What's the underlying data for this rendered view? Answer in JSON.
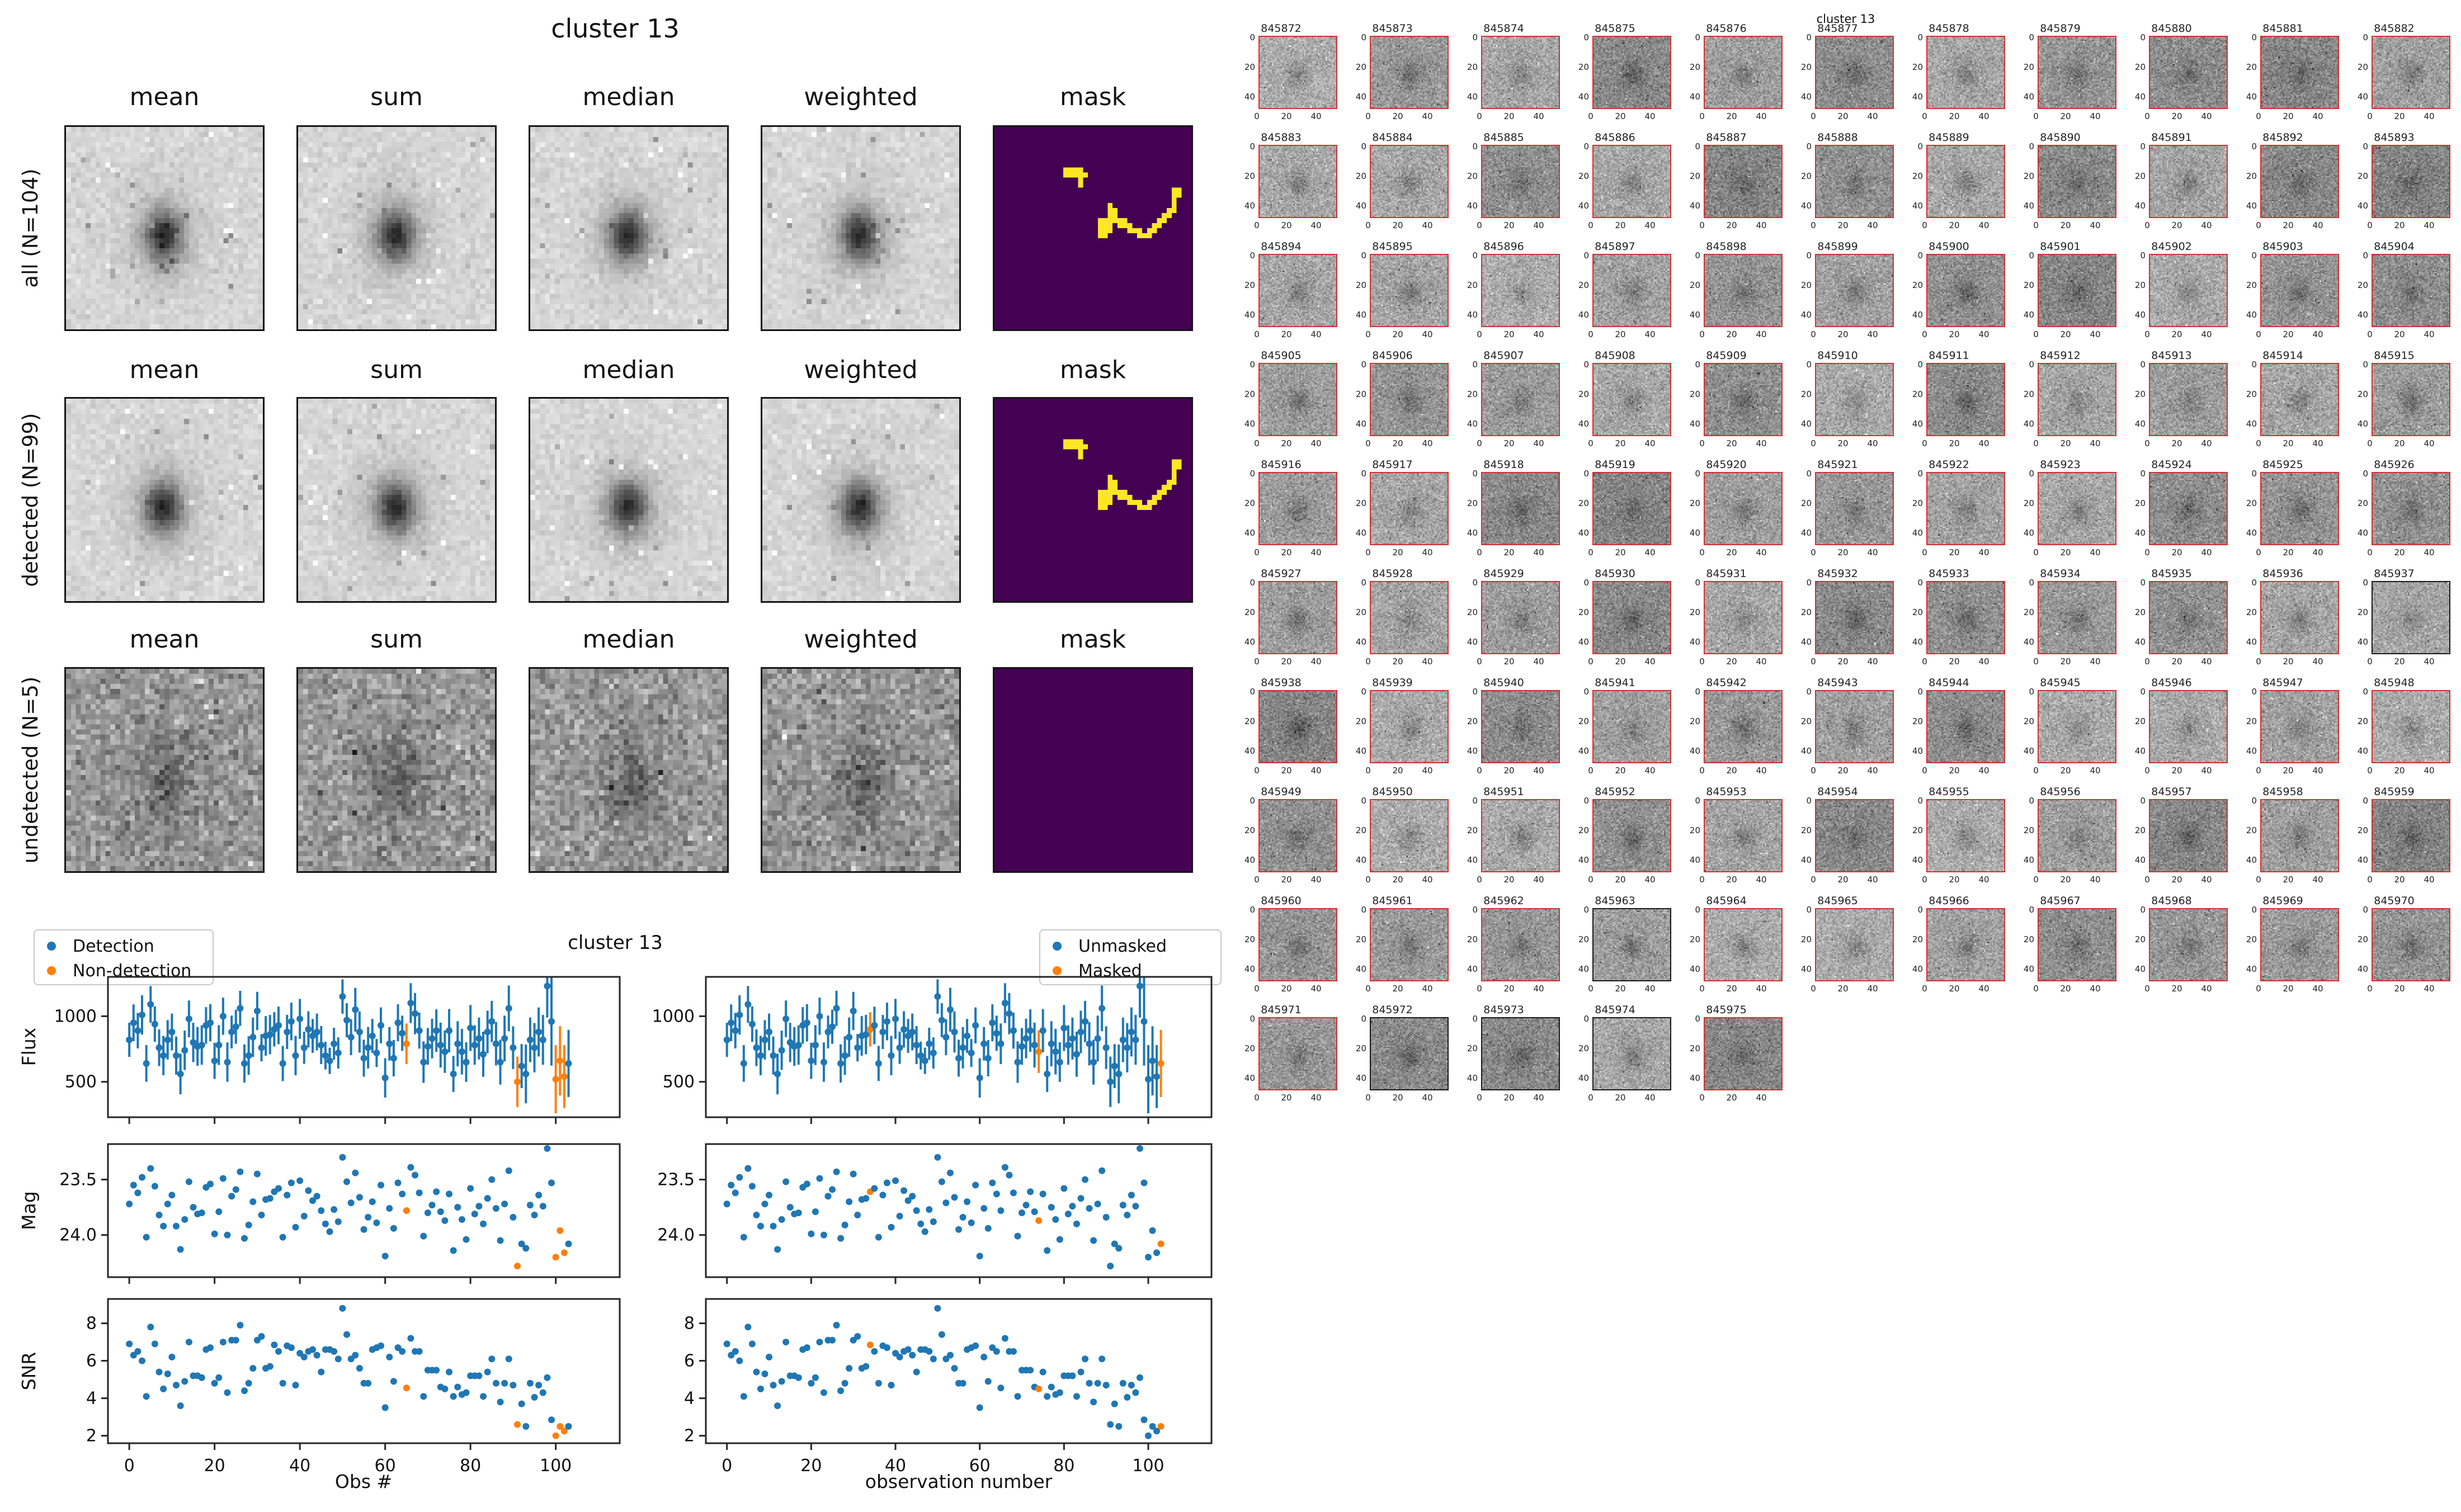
{
  "stack_figure": {
    "title": "cluster 13",
    "column_headers": [
      "mean",
      "sum",
      "median",
      "weighted",
      "mask"
    ],
    "rows": [
      {
        "label": "all (N=104)"
      },
      {
        "label": "detected (N=99)"
      },
      {
        "label": "undetected (N=5)"
      }
    ],
    "mask_colors": {
      "background": "#440154",
      "foreground": "#fde725"
    },
    "mask_rows_with_pattern": [
      0,
      1
    ],
    "mask_cells": [
      [
        14,
        8
      ],
      [
        15,
        8
      ],
      [
        16,
        8
      ],
      [
        17,
        8
      ],
      [
        14,
        9
      ],
      [
        15,
        9
      ],
      [
        16,
        9
      ],
      [
        17,
        9
      ],
      [
        18,
        9
      ],
      [
        17,
        10
      ],
      [
        17,
        11
      ],
      [
        36,
        12
      ],
      [
        37,
        12
      ],
      [
        36,
        13
      ],
      [
        37,
        13
      ],
      [
        36,
        14
      ],
      [
        36,
        15
      ],
      [
        36,
        16
      ],
      [
        23,
        15
      ],
      [
        23,
        16
      ],
      [
        24,
        16
      ],
      [
        23,
        17
      ],
      [
        24,
        17
      ],
      [
        21,
        18
      ],
      [
        22,
        18
      ],
      [
        23,
        18
      ],
      [
        24,
        18
      ],
      [
        25,
        18
      ],
      [
        26,
        18
      ],
      [
        21,
        19
      ],
      [
        22,
        19
      ],
      [
        23,
        19
      ],
      [
        25,
        19
      ],
      [
        26,
        19
      ],
      [
        27,
        19
      ],
      [
        21,
        20
      ],
      [
        22,
        20
      ],
      [
        23,
        20
      ],
      [
        27,
        20
      ],
      [
        28,
        20
      ],
      [
        29,
        20
      ],
      [
        21,
        21
      ],
      [
        22,
        21
      ],
      [
        29,
        21
      ],
      [
        30,
        21
      ],
      [
        31,
        21
      ],
      [
        31,
        20
      ],
      [
        32,
        20
      ],
      [
        32,
        19
      ],
      [
        33,
        19
      ],
      [
        33,
        18
      ],
      [
        34,
        18
      ],
      [
        34,
        17
      ],
      [
        35,
        17
      ],
      [
        35,
        16
      ]
    ]
  },
  "lightcurve_figure": {
    "title": "cluster 13",
    "ylabels": [
      "Flux",
      "Mag",
      "SNR"
    ],
    "xlabel_left": "Obs #",
    "xlabel_right": "observation number",
    "legend_left": {
      "items": [
        {
          "label": "Detection",
          "color": "#1f77b4"
        },
        {
          "label": "Non-detection",
          "color": "#ff7f0e"
        }
      ]
    },
    "legend_right": {
      "items": [
        {
          "label": "Unmasked",
          "color": "#1f77b4"
        },
        {
          "label": "Masked",
          "color": "#ff7f0e"
        }
      ]
    }
  },
  "chart_data": {
    "type": "errorbar+scatter",
    "title": "cluster 13",
    "xlim": [
      -5,
      115
    ],
    "xticks": [
      0,
      20,
      40,
      60,
      80,
      100
    ],
    "panels": [
      {
        "key": "flux",
        "ylabel": "Flux",
        "plot": "errorbar",
        "ylim": [
          230,
          1300
        ],
        "yticks": [
          500,
          1000
        ]
      },
      {
        "key": "mag",
        "ylabel": "Mag",
        "plot": "scatter",
        "ylim": [
          23.18,
          24.38
        ],
        "inverted": true,
        "yticks": [
          23.5,
          24.0
        ]
      },
      {
        "key": "snr",
        "ylabel": "SNR",
        "plot": "scatter",
        "ylim": [
          1.6,
          9.3
        ],
        "yticks": [
          2,
          4,
          6,
          8
        ]
      }
    ],
    "non_detected_x": [
      65,
      91,
      100,
      101,
      102
    ],
    "masked_x": [
      34,
      74,
      103
    ],
    "point_color": "#1f77b4",
    "flag_color": "#ff7f0e",
    "x": [
      0,
      1,
      2,
      3,
      4,
      5,
      6,
      7,
      8,
      9,
      10,
      11,
      12,
      13,
      14,
      15,
      16,
      17,
      18,
      19,
      20,
      21,
      22,
      23,
      24,
      25,
      26,
      27,
      28,
      29,
      30,
      31,
      32,
      33,
      34,
      35,
      36,
      37,
      38,
      39,
      40,
      41,
      42,
      43,
      44,
      45,
      46,
      47,
      48,
      49,
      50,
      51,
      52,
      53,
      54,
      55,
      56,
      57,
      58,
      59,
      60,
      61,
      62,
      63,
      64,
      65,
      66,
      67,
      68,
      69,
      70,
      71,
      72,
      73,
      74,
      75,
      76,
      77,
      78,
      79,
      80,
      81,
      82,
      83,
      84,
      85,
      86,
      87,
      88,
      89,
      90,
      91,
      92,
      93,
      94,
      95,
      96,
      97,
      98,
      99,
      100,
      101,
      102,
      103
    ],
    "flux": [
      820,
      950,
      890,
      1010,
      640,
      1090,
      940,
      760,
      700,
      820,
      880,
      700,
      560,
      740,
      980,
      800,
      770,
      780,
      930,
      950,
      660,
      780,
      1000,
      650,
      880,
      920,
      1060,
      640,
      700,
      840,
      1040,
      760,
      850,
      860,
      900,
      930,
      640,
      880,
      960,
      700,
      980,
      760,
      900,
      850,
      880,
      780,
      700,
      660,
      790,
      720,
      1150,
      970,
      840,
      1050,
      880,
      680,
      760,
      850,
      720,
      930,
      530,
      790,
      680,
      950,
      870,
      790,
      1100,
      1020,
      890,
      650,
      770,
      830,
      890,
      780,
      730,
      890,
      560,
      790,
      730,
      650,
      910,
      780,
      830,
      710,
      880,
      960,
      790,
      650,
      830,
      1060,
      760,
      500,
      620,
      560,
      820,
      760,
      880,
      820,
      1230,
      960,
      520,
      660,
      540,
      640
    ],
    "flux_err": [
      130,
      140,
      135,
      150,
      140,
      140,
      135,
      140,
      150,
      150,
      140,
      145,
      155,
      150,
      140,
      150,
      148,
      150,
      140,
      142,
      138,
      152,
      142,
      150,
      125,
      130,
      134,
      145,
      147,
      150,
      146,
      104,
      151,
      150,
      131,
      143,
      134,
      130,
      144,
      150,
      152,
      123,
      138,
      129,
      140,
      145,
      106,
      100,
      122,
      119,
      131,
      130,
      137,
      167,
      157,
      141,
      158,
      129,
      107,
      137,
      150,
      128,
      139,
      141,
      134,
      155,
      152,
      157,
      137,
      158,
      140,
      151,
      162,
      171,
      162,
      165,
      137,
      172,
      174,
      151,
      175,
      150,
      160,
      172,
      162,
      157,
      165,
      171,
      174,
      174,
      163,
      192,
      168,
      224,
      170,
      188,
      187,
      190,
      240,
      336,
      260,
      264,
      240,
      256
    ],
    "mag": [
      23.72,
      23.55,
      23.62,
      23.48,
      24.02,
      23.4,
      23.56,
      23.82,
      23.92,
      23.72,
      23.64,
      23.92,
      24.13,
      23.86,
      23.52,
      23.75,
      23.81,
      23.8,
      23.57,
      23.54,
      23.99,
      23.79,
      23.49,
      24.0,
      23.65,
      23.59,
      23.43,
      24.03,
      23.91,
      23.7,
      23.45,
      23.82,
      23.68,
      23.67,
      23.61,
      23.58,
      24.02,
      23.64,
      23.53,
      23.93,
      23.51,
      23.83,
      23.6,
      23.69,
      23.65,
      23.78,
      23.9,
      23.97,
      23.77,
      23.88,
      23.3,
      23.52,
      23.71,
      23.44,
      23.66,
      23.95,
      23.84,
      23.7,
      23.89,
      23.55,
      24.19,
      23.76,
      23.94,
      23.53,
      23.63,
      23.78,
      23.39,
      23.46,
      23.62,
      24.01,
      23.8,
      23.73,
      23.61,
      23.79,
      23.87,
      23.63,
      24.14,
      23.75,
      23.86,
      24.04,
      23.58,
      23.81,
      23.74,
      23.9,
      23.67,
      23.5,
      23.76,
      24.05,
      23.72,
      23.42,
      23.84,
      24.28,
      24.08,
      24.12,
      23.73,
      23.82,
      23.64,
      23.74,
      23.22,
      23.53,
      24.2,
      23.96,
      24.16,
      24.08
    ],
    "snr": [
      6.9,
      6.3,
      6.5,
      6.0,
      4.1,
      7.8,
      6.9,
      5.4,
      4.5,
      5.3,
      6.2,
      4.7,
      3.6,
      4.9,
      7.0,
      5.2,
      5.2,
      5.1,
      6.6,
      6.7,
      4.8,
      5.1,
      7.0,
      4.3,
      7.1,
      7.1,
      7.9,
      4.4,
      4.8,
      5.6,
      7.1,
      7.3,
      5.6,
      5.7,
      6.85,
      6.5,
      4.8,
      6.8,
      6.7,
      4.7,
      6.4,
      6.2,
      6.5,
      6.6,
      6.3,
      5.4,
      6.6,
      6.6,
      6.5,
      6.1,
      8.8,
      7.4,
      6.1,
      6.3,
      5.6,
      4.8,
      4.8,
      6.6,
      6.7,
      6.8,
      3.5,
      6.2,
      4.9,
      6.7,
      6.5,
      4.55,
      7.2,
      6.5,
      6.5,
      4.1,
      5.5,
      5.5,
      5.5,
      4.6,
      4.5,
      5.4,
      4.1,
      4.6,
      4.2,
      4.3,
      5.2,
      5.2,
      5.2,
      4.1,
      5.4,
      6.1,
      4.8,
      3.8,
      4.8,
      6.1,
      4.7,
      2.6,
      3.7,
      2.5,
      4.8,
      4.05,
      4.7,
      4.3,
      5.1,
      2.85,
      2.0,
      2.5,
      2.25,
      2.5
    ]
  },
  "stamp_grid": {
    "suptitle": "cluster 13",
    "xticks": [
      "0",
      "20",
      "40"
    ],
    "yticks": [
      "0",
      "20",
      "40"
    ],
    "border_color": "#d62f2f",
    "border_color_undetected": "#1a1a1a",
    "undetected_ids": [
      845937,
      845963,
      845972,
      845973,
      845974
    ],
    "ids": [
      845872,
      845873,
      845874,
      845875,
      845876,
      845877,
      845878,
      845879,
      845880,
      845881,
      845882,
      845883,
      845884,
      845885,
      845886,
      845887,
      845888,
      845889,
      845890,
      845891,
      845892,
      845893,
      845894,
      845895,
      845896,
      845897,
      845898,
      845899,
      845900,
      845901,
      845902,
      845903,
      845904,
      845905,
      845906,
      845907,
      845908,
      845909,
      845910,
      845911,
      845912,
      845913,
      845914,
      845915,
      845916,
      845917,
      845918,
      845919,
      845920,
      845921,
      845922,
      845923,
      845924,
      845925,
      845926,
      845927,
      845928,
      845929,
      845930,
      845931,
      845932,
      845933,
      845934,
      845935,
      845936,
      845937,
      845938,
      845939,
      845940,
      845941,
      845942,
      845943,
      845944,
      845945,
      845946,
      845947,
      845948,
      845949,
      845950,
      845951,
      845952,
      845953,
      845954,
      845955,
      845956,
      845957,
      845958,
      845959,
      845960,
      845961,
      845962,
      845963,
      845964,
      845965,
      845966,
      845967,
      845968,
      845969,
      845970,
      845971,
      845972,
      845973,
      845974,
      845975
    ]
  }
}
